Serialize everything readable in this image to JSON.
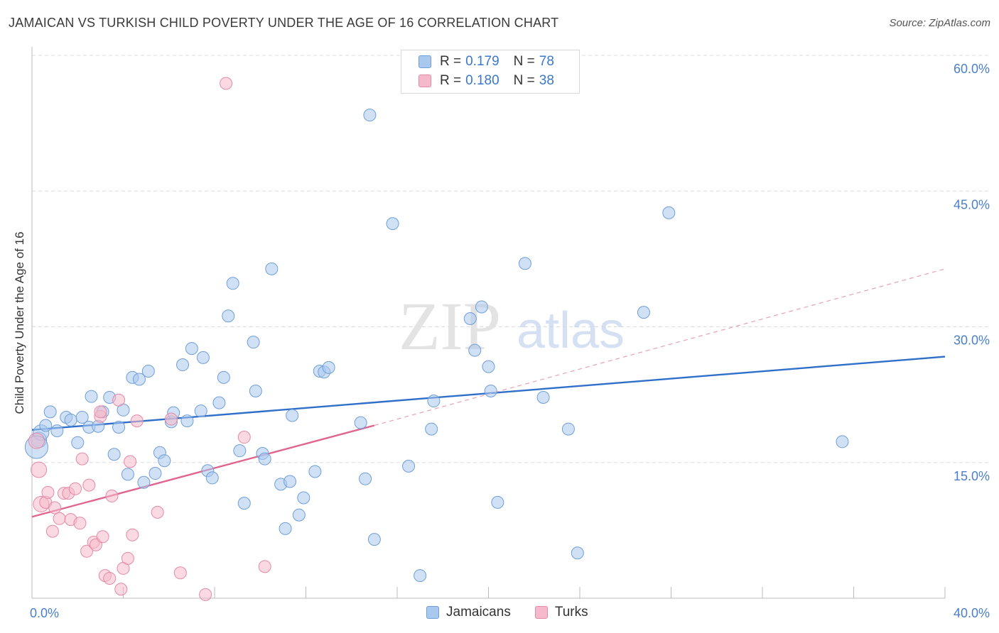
{
  "title": "JAMAICAN VS TURKISH CHILD POVERTY UNDER THE AGE OF 16 CORRELATION CHART",
  "source": "Source: ZipAtlas.com",
  "watermark": {
    "zip": "ZIP",
    "atlas": "atlas"
  },
  "legend": {
    "r_label": "R =",
    "n_label": "N =",
    "rows": [
      {
        "r": "0.179",
        "n": "78",
        "color": "#a9c8ee",
        "border": "#6f9fd8"
      },
      {
        "r": "0.180",
        "n": "38",
        "color": "#f6b9cb",
        "border": "#e48aa6"
      }
    ]
  },
  "bottom_legend": [
    {
      "label": "Jamaicans",
      "color": "#a9c8ee",
      "border": "#6f9fd8"
    },
    {
      "label": "Turks",
      "color": "#f6b9cb",
      "border": "#e48aa6"
    }
  ],
  "chart_data": {
    "type": "scatter",
    "ylabel": "Child Poverty Under the Age of 16",
    "xlabel": "",
    "xlim": [
      0,
      40
    ],
    "ylim": [
      0,
      60
    ],
    "x_tick_labels": [
      "0.0%",
      "40.0%"
    ],
    "y_ticks": [
      15,
      30,
      45,
      60
    ],
    "y_tick_labels": [
      "15.0%",
      "30.0%",
      "45.0%",
      "60.0%"
    ],
    "grid": true,
    "legend_position": "top-center",
    "series": [
      {
        "name": "Jamaicans",
        "color": "#a9c8ee",
        "stroke": "#6f9fd8",
        "trend": {
          "x": [
            0,
            40
          ],
          "y": [
            18.6,
            26.7
          ],
          "color": "#2f6fca",
          "style": "solid"
        },
        "points": [
          [
            0.3,
            17.5
          ],
          [
            0.4,
            18.3
          ],
          [
            0.6,
            19.1
          ],
          [
            0.8,
            20.6
          ],
          [
            1.1,
            18.5
          ],
          [
            1.5,
            20.0
          ],
          [
            1.7,
            19.7
          ],
          [
            2.0,
            17.2
          ],
          [
            2.2,
            20.0
          ],
          [
            2.5,
            18.9
          ],
          [
            2.6,
            22.3
          ],
          [
            2.9,
            19.0
          ],
          [
            3.1,
            20.6
          ],
          [
            3.4,
            22.2
          ],
          [
            3.6,
            15.9
          ],
          [
            3.8,
            18.9
          ],
          [
            4.0,
            20.8
          ],
          [
            4.2,
            13.7
          ],
          [
            4.4,
            24.4
          ],
          [
            4.7,
            24.2
          ],
          [
            4.9,
            12.8
          ],
          [
            5.1,
            25.1
          ],
          [
            5.4,
            13.8
          ],
          [
            5.6,
            16.1
          ],
          [
            5.8,
            15.2
          ],
          [
            6.1,
            19.5
          ],
          [
            6.2,
            20.5
          ],
          [
            6.6,
            25.8
          ],
          [
            6.8,
            19.6
          ],
          [
            7.0,
            27.6
          ],
          [
            7.4,
            20.7
          ],
          [
            7.5,
            26.6
          ],
          [
            7.7,
            14.1
          ],
          [
            7.9,
            13.3
          ],
          [
            8.2,
            21.6
          ],
          [
            8.4,
            24.4
          ],
          [
            8.6,
            31.2
          ],
          [
            8.8,
            34.8
          ],
          [
            9.1,
            16.3
          ],
          [
            9.3,
            10.5
          ],
          [
            9.7,
            28.3
          ],
          [
            9.8,
            22.9
          ],
          [
            10.1,
            16.0
          ],
          [
            10.2,
            15.4
          ],
          [
            10.5,
            36.4
          ],
          [
            10.9,
            12.6
          ],
          [
            11.1,
            7.7
          ],
          [
            11.3,
            12.9
          ],
          [
            11.4,
            20.2
          ],
          [
            11.7,
            9.2
          ],
          [
            11.9,
            11.1
          ],
          [
            12.4,
            14.0
          ],
          [
            12.6,
            25.1
          ],
          [
            12.8,
            25.0
          ],
          [
            13.0,
            25.5
          ],
          [
            14.4,
            19.4
          ],
          [
            14.6,
            13.2
          ],
          [
            14.8,
            53.4
          ],
          [
            15.0,
            6.5
          ],
          [
            15.8,
            41.4
          ],
          [
            16.5,
            14.6
          ],
          [
            17.0,
            2.5
          ],
          [
            17.5,
            18.7
          ],
          [
            17.6,
            21.8
          ],
          [
            19.2,
            30.9
          ],
          [
            19.4,
            27.4
          ],
          [
            19.7,
            32.2
          ],
          [
            20.0,
            25.6
          ],
          [
            20.1,
            22.9
          ],
          [
            20.4,
            10.6
          ],
          [
            21.6,
            37.0
          ],
          [
            22.4,
            22.2
          ],
          [
            23.5,
            18.7
          ],
          [
            23.9,
            5.0
          ],
          [
            26.8,
            31.6
          ],
          [
            27.9,
            42.6
          ],
          [
            35.5,
            17.3
          ],
          [
            0.2,
            16.7
          ]
        ]
      },
      {
        "name": "Turks",
        "color": "#f6b9cb",
        "stroke": "#e48aa6",
        "trend": {
          "x": [
            0,
            15
          ],
          "y": [
            9.0,
            19.1
          ],
          "color": "#e0648e",
          "style": "solid"
        },
        "trend_ext": {
          "x": [
            15,
            40
          ],
          "y": [
            19.1,
            36.4
          ],
          "color": "#e8a0b8",
          "style": "dashed"
        },
        "points": [
          [
            0.2,
            17.4
          ],
          [
            0.3,
            14.2
          ],
          [
            0.4,
            10.4
          ],
          [
            0.6,
            10.6
          ],
          [
            0.7,
            11.7
          ],
          [
            0.9,
            7.4
          ],
          [
            1.0,
            10.0
          ],
          [
            1.2,
            8.8
          ],
          [
            1.4,
            11.6
          ],
          [
            1.6,
            11.6
          ],
          [
            1.7,
            8.7
          ],
          [
            1.9,
            12.1
          ],
          [
            2.1,
            8.3
          ],
          [
            2.2,
            15.4
          ],
          [
            2.4,
            5.2
          ],
          [
            2.5,
            12.5
          ],
          [
            2.7,
            6.2
          ],
          [
            2.8,
            5.9
          ],
          [
            3.0,
            20.1
          ],
          [
            3.1,
            6.8
          ],
          [
            3.2,
            2.5
          ],
          [
            3.4,
            2.2
          ],
          [
            3.5,
            11.3
          ],
          [
            3.8,
            21.9
          ],
          [
            3.9,
            1.0
          ],
          [
            4.0,
            3.3
          ],
          [
            4.2,
            4.4
          ],
          [
            4.3,
            15.1
          ],
          [
            4.4,
            7.0
          ],
          [
            4.6,
            19.6
          ],
          [
            5.5,
            9.5
          ],
          [
            6.1,
            19.8
          ],
          [
            6.5,
            2.8
          ],
          [
            7.6,
            0.4
          ],
          [
            8.5,
            56.9
          ],
          [
            9.3,
            17.8
          ],
          [
            10.2,
            3.5
          ],
          [
            3.0,
            20.6
          ]
        ]
      }
    ]
  }
}
